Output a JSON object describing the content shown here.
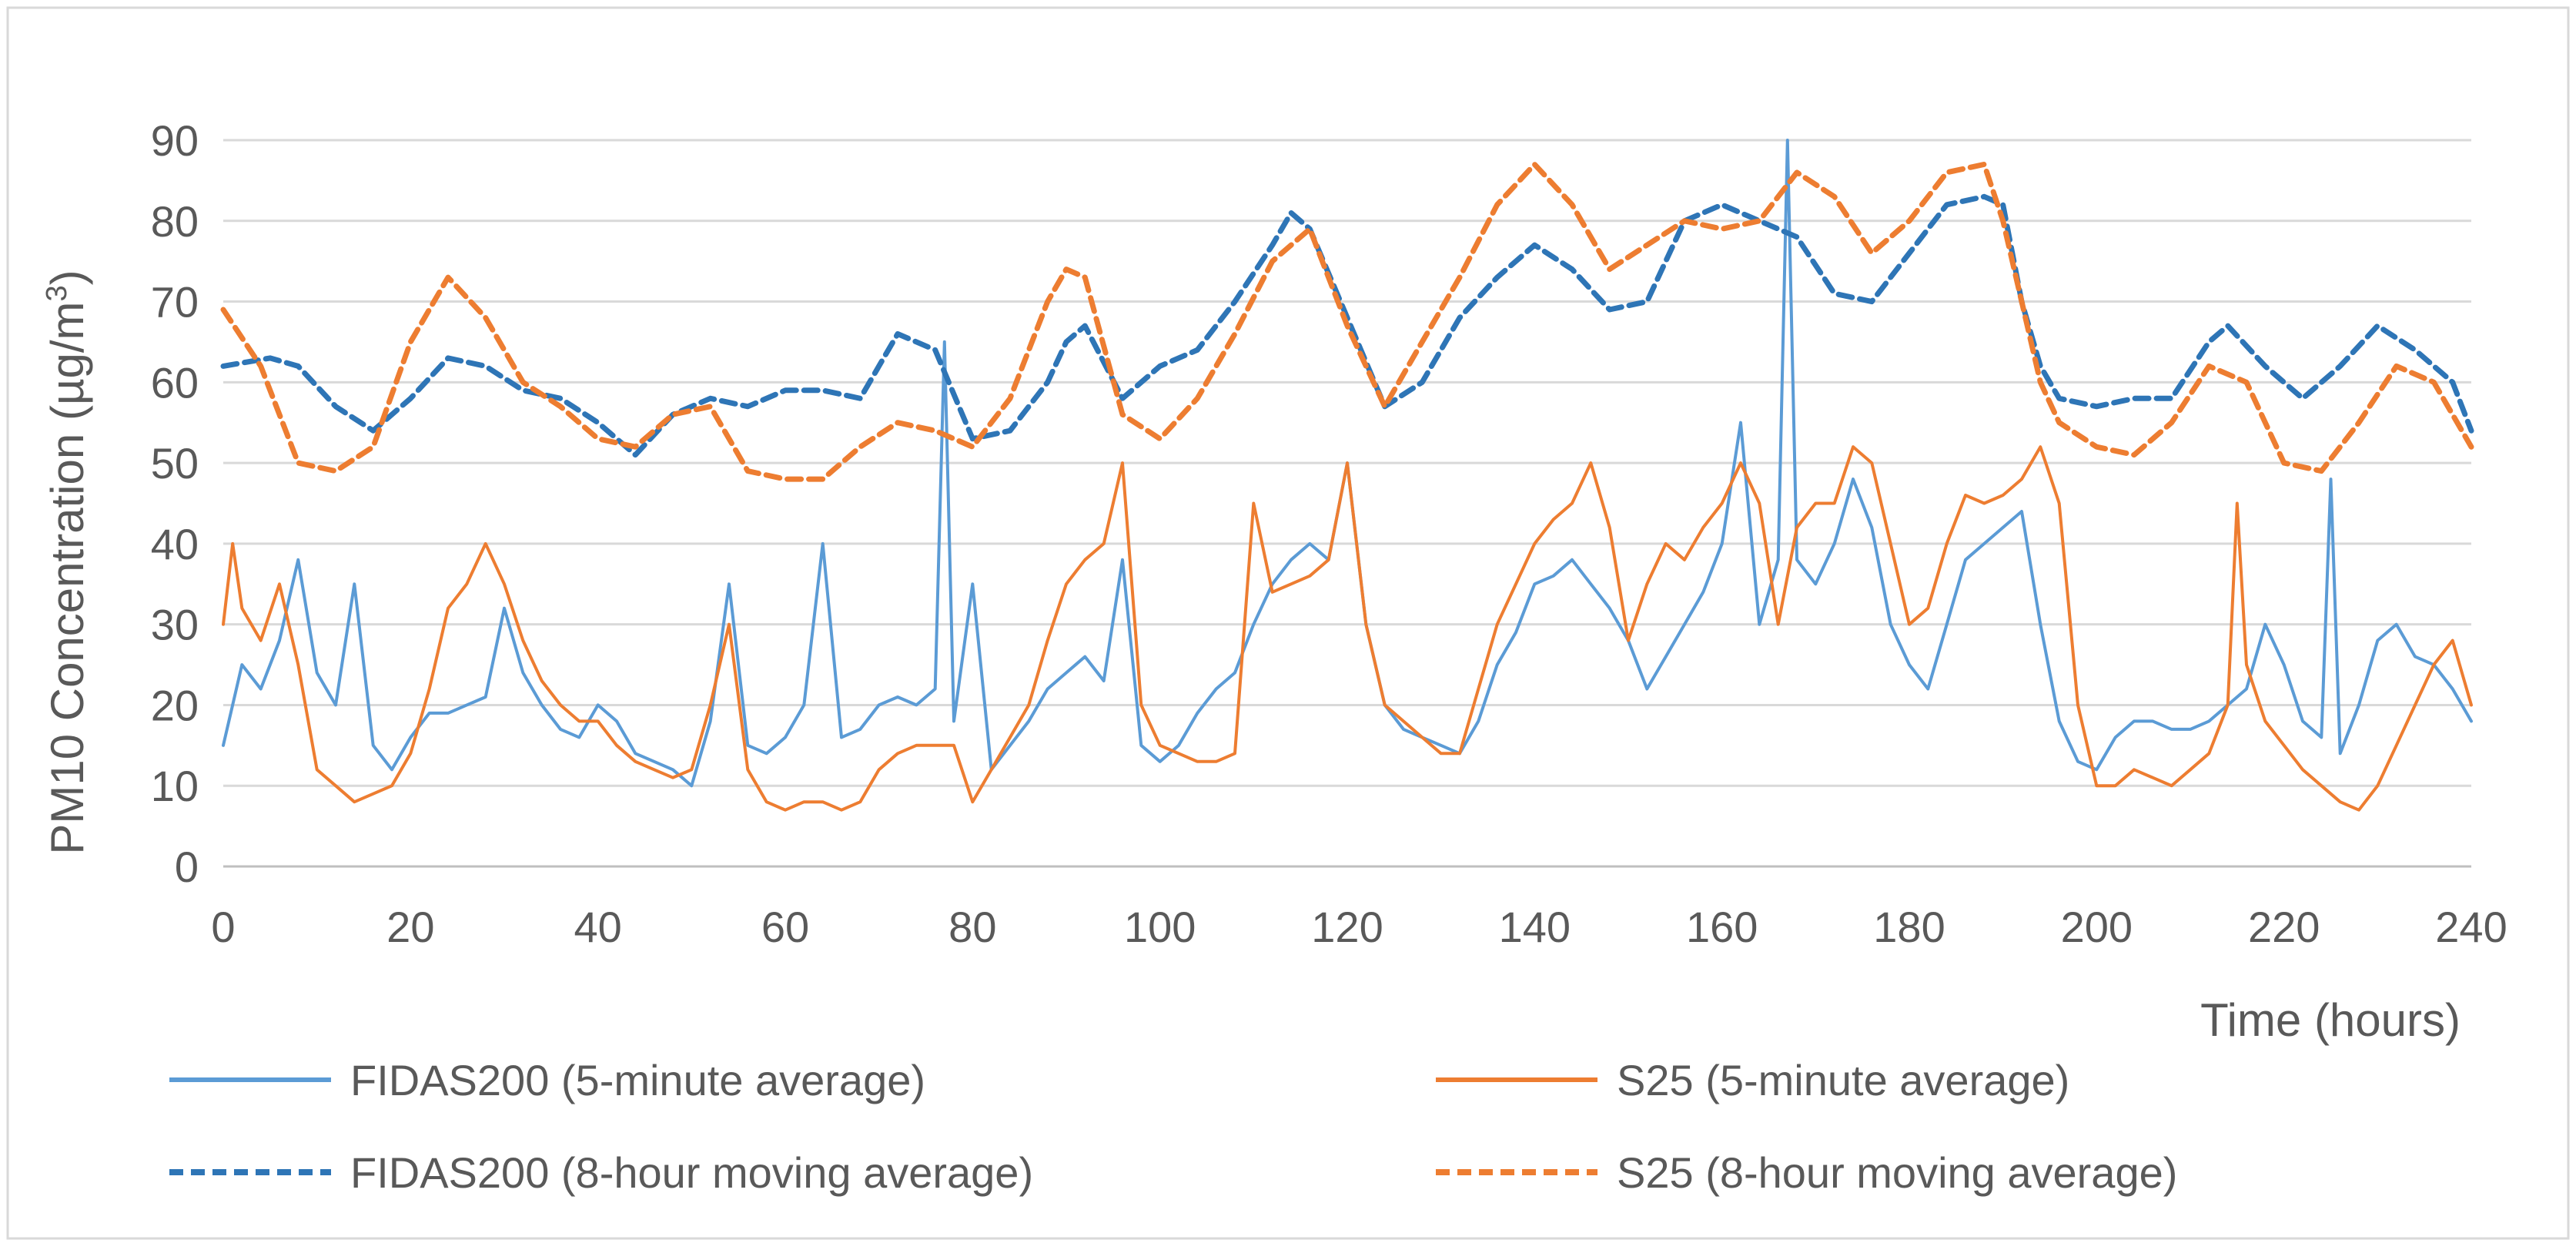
{
  "chart_data": {
    "type": "line",
    "title": "",
    "xlabel": "Time (hours)",
    "ylabel_main": "PM10 Concentration  (µg/m",
    "ylabel_sup": "3",
    "ylabel_end": ")",
    "xlim": [
      0,
      240
    ],
    "ylim": [
      0,
      90
    ],
    "xticks": [
      "0",
      "20",
      "40",
      "60",
      "80",
      "100",
      "120",
      "140",
      "160",
      "180",
      "200",
      "220",
      "240"
    ],
    "yticks": [
      "0",
      "10",
      "20",
      "30",
      "40",
      "50",
      "60",
      "70",
      "80",
      "90"
    ],
    "grid": true,
    "legend_position": "bottom",
    "colors": {
      "fidas": "#5B9BD5",
      "fidas_ma": "#2E75B6",
      "s25": "#ED7D31",
      "s25_ma": "#ED7D31",
      "grid": "#D9D9D9",
      "axis": "#BFBFBF",
      "frame": "#D9D9D9"
    },
    "series": [
      {
        "name": "FIDAS200 (5-minute average)",
        "style": "solid",
        "x": [
          0,
          2,
          4,
          6,
          8,
          10,
          12,
          14,
          16,
          18,
          20,
          22,
          24,
          26,
          28,
          30,
          32,
          34,
          36,
          38,
          40,
          42,
          44,
          46,
          48,
          50,
          52,
          54,
          56,
          58,
          60,
          62,
          64,
          66,
          68,
          70,
          72,
          74,
          76,
          77,
          78,
          80,
          82,
          84,
          86,
          88,
          90,
          92,
          94,
          96,
          98,
          100,
          102,
          104,
          106,
          108,
          110,
          112,
          114,
          116,
          118,
          120,
          122,
          124,
          126,
          128,
          130,
          132,
          134,
          136,
          138,
          140,
          142,
          144,
          146,
          148,
          150,
          152,
          154,
          156,
          158,
          160,
          162,
          164,
          166,
          167,
          168,
          170,
          172,
          174,
          176,
          178,
          180,
          182,
          184,
          186,
          188,
          190,
          192,
          194,
          196,
          198,
          200,
          202,
          204,
          206,
          208,
          210,
          212,
          214,
          216,
          218,
          220,
          222,
          224,
          225,
          226,
          228,
          230,
          232,
          234,
          236,
          238,
          240
        ],
        "y": [
          15,
          25,
          22,
          28,
          38,
          24,
          20,
          35,
          15,
          12,
          16,
          19,
          19,
          20,
          21,
          32,
          24,
          20,
          17,
          16,
          20,
          18,
          14,
          13,
          12,
          10,
          18,
          35,
          15,
          14,
          16,
          20,
          40,
          16,
          17,
          20,
          21,
          20,
          22,
          65,
          18,
          35,
          12,
          15,
          18,
          22,
          24,
          26,
          23,
          38,
          15,
          13,
          15,
          19,
          22,
          24,
          30,
          35,
          38,
          40,
          38,
          50,
          30,
          20,
          17,
          16,
          15,
          14,
          18,
          25,
          29,
          35,
          36,
          38,
          35,
          32,
          28,
          22,
          26,
          30,
          34,
          40,
          55,
          30,
          38,
          90,
          38,
          35,
          40,
          48,
          42,
          30,
          25,
          22,
          30,
          38,
          40,
          42,
          44,
          30,
          18,
          13,
          12,
          16,
          18,
          18,
          17,
          17,
          18,
          20,
          22,
          30,
          25,
          18,
          16,
          48,
          14,
          20,
          28,
          30,
          26,
          25,
          22,
          18
        ]
      },
      {
        "name": "S25 (5-minute average)",
        "style": "solid",
        "x": [
          0,
          1,
          2,
          4,
          6,
          8,
          10,
          12,
          14,
          16,
          18,
          20,
          22,
          24,
          26,
          28,
          30,
          32,
          34,
          36,
          38,
          40,
          42,
          44,
          46,
          48,
          50,
          52,
          54,
          56,
          58,
          60,
          62,
          64,
          66,
          68,
          70,
          72,
          74,
          76,
          78,
          80,
          82,
          84,
          86,
          88,
          90,
          92,
          94,
          96,
          98,
          100,
          102,
          104,
          106,
          108,
          110,
          112,
          114,
          116,
          118,
          120,
          122,
          124,
          126,
          128,
          130,
          132,
          134,
          136,
          138,
          140,
          142,
          144,
          146,
          148,
          150,
          152,
          154,
          156,
          158,
          160,
          162,
          164,
          166,
          168,
          170,
          172,
          174,
          176,
          178,
          180,
          182,
          184,
          186,
          188,
          190,
          192,
          194,
          196,
          198,
          200,
          202,
          204,
          206,
          208,
          210,
          212,
          214,
          215,
          216,
          218,
          220,
          222,
          224,
          226,
          228,
          230,
          232,
          234,
          236,
          238,
          240
        ],
        "y": [
          30,
          40,
          32,
          28,
          35,
          25,
          12,
          10,
          8,
          9,
          10,
          14,
          22,
          32,
          35,
          40,
          35,
          28,
          23,
          20,
          18,
          18,
          15,
          13,
          12,
          11,
          12,
          20,
          30,
          12,
          8,
          7,
          8,
          8,
          7,
          8,
          12,
          14,
          15,
          15,
          15,
          8,
          12,
          16,
          20,
          28,
          35,
          38,
          40,
          50,
          20,
          15,
          14,
          13,
          13,
          14,
          45,
          34,
          35,
          36,
          38,
          50,
          30,
          20,
          18,
          16,
          14,
          14,
          22,
          30,
          35,
          40,
          43,
          45,
          50,
          42,
          28,
          35,
          40,
          38,
          42,
          45,
          50,
          45,
          30,
          42,
          45,
          45,
          52,
          50,
          40,
          30,
          32,
          40,
          46,
          45,
          46,
          48,
          52,
          45,
          20,
          10,
          10,
          12,
          11,
          10,
          12,
          14,
          20,
          45,
          25,
          18,
          15,
          12,
          10,
          8,
          7,
          10,
          15,
          20,
          25,
          28,
          20
        ]
      },
      {
        "name": "FIDAS200 (8-hour moving average)",
        "style": "dashed",
        "x": [
          0,
          5,
          8,
          12,
          16,
          20,
          24,
          28,
          32,
          36,
          40,
          44,
          48,
          52,
          56,
          60,
          64,
          68,
          72,
          76,
          80,
          84,
          88,
          90,
          92,
          96,
          100,
          104,
          108,
          112,
          114,
          116,
          120,
          124,
          128,
          132,
          136,
          140,
          144,
          148,
          152,
          156,
          160,
          164,
          168,
          172,
          176,
          180,
          184,
          188,
          190,
          192,
          194,
          196,
          200,
          204,
          208,
          212,
          214,
          218,
          222,
          226,
          230,
          234,
          238,
          240
        ],
        "y": [
          62,
          63,
          62,
          57,
          54,
          58,
          63,
          62,
          59,
          58,
          55,
          51,
          56,
          58,
          57,
          59,
          59,
          58,
          66,
          64,
          53,
          54,
          60,
          65,
          67,
          58,
          62,
          64,
          70,
          77,
          81,
          79,
          68,
          57,
          60,
          68,
          73,
          77,
          74,
          69,
          70,
          80,
          82,
          80,
          78,
          71,
          70,
          76,
          82,
          83,
          82,
          70,
          62,
          58,
          57,
          58,
          58,
          65,
          67,
          62,
          58,
          62,
          67,
          64,
          60,
          54
        ]
      },
      {
        "name": "S25 (8-hour moving average)",
        "style": "dashed",
        "x": [
          0,
          4,
          8,
          12,
          16,
          20,
          24,
          28,
          32,
          36,
          40,
          44,
          48,
          52,
          56,
          60,
          64,
          68,
          72,
          76,
          80,
          84,
          88,
          90,
          92,
          96,
          100,
          104,
          108,
          112,
          116,
          120,
          124,
          128,
          132,
          136,
          140,
          144,
          148,
          152,
          156,
          160,
          164,
          168,
          172,
          176,
          180,
          184,
          188,
          190,
          192,
          194,
          196,
          200,
          204,
          208,
          212,
          216,
          220,
          224,
          228,
          232,
          236,
          240
        ],
        "y": [
          69,
          62,
          50,
          49,
          52,
          65,
          73,
          68,
          60,
          57,
          53,
          52,
          56,
          57,
          49,
          48,
          48,
          52,
          55,
          54,
          52,
          58,
          70,
          74,
          73,
          56,
          53,
          58,
          66,
          75,
          79,
          67,
          57,
          65,
          73,
          82,
          87,
          82,
          74,
          77,
          80,
          79,
          80,
          86,
          83,
          76,
          80,
          86,
          87,
          80,
          70,
          60,
          55,
          52,
          51,
          55,
          62,
          60,
          50,
          49,
          55,
          62,
          60,
          52
        ]
      }
    ]
  }
}
